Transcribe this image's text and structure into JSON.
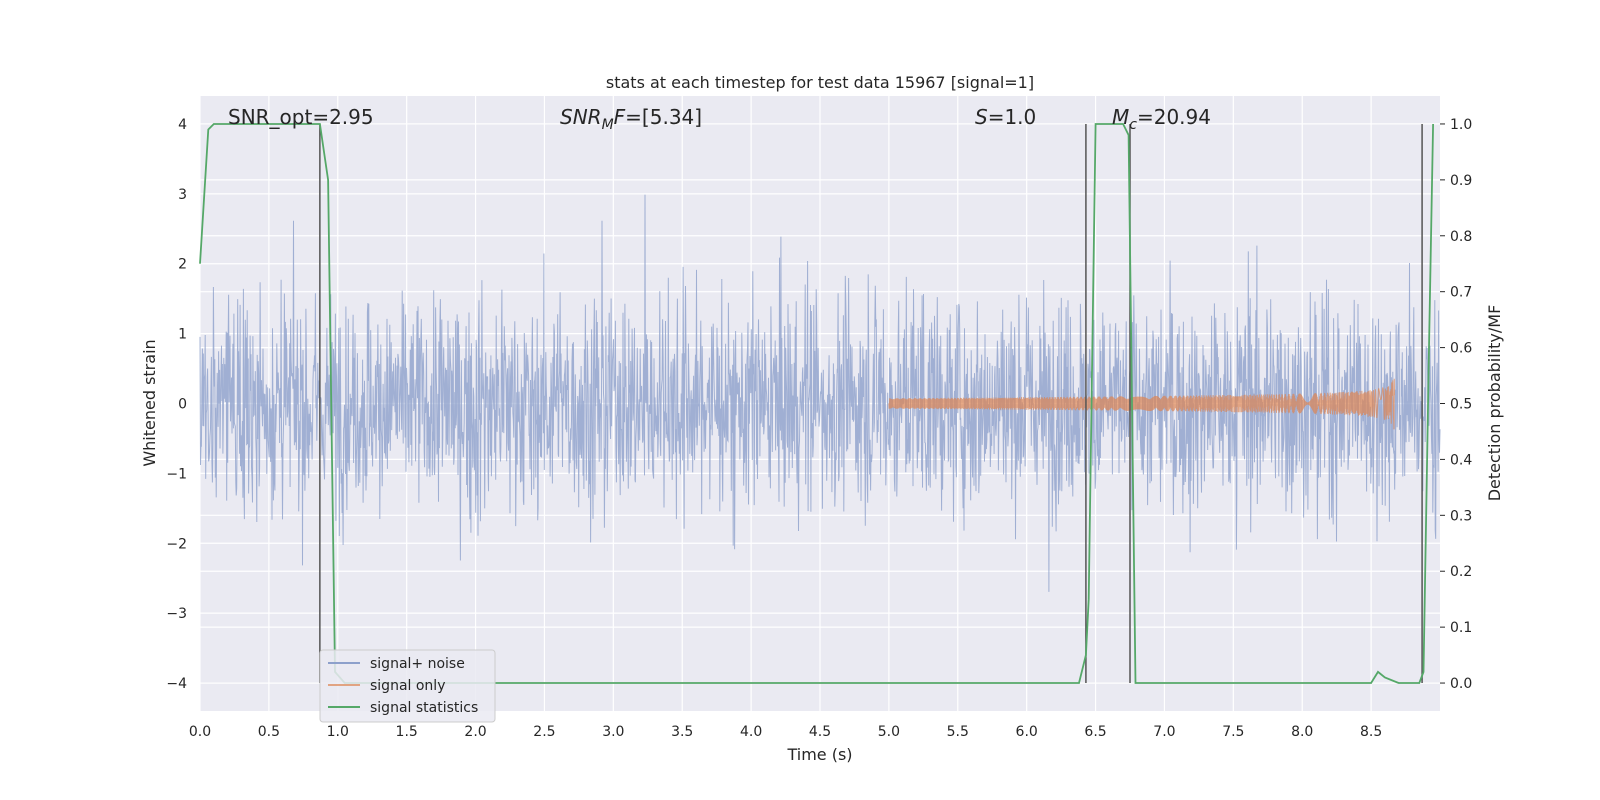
{
  "chart_data": {
    "type": "line",
    "title": "stats at each timestep for test data 15967 [signal=1]",
    "xlabel": "Time (s)",
    "ylabel": "Whitened strain",
    "ylabel_right": "Detection probability/MF",
    "xlim": [
      0.0,
      9.0
    ],
    "ylim": [
      -4.4,
      4.4
    ],
    "ylim_right": [
      -0.05,
      1.05
    ],
    "x_ticks": [
      0.0,
      0.5,
      1.0,
      1.5,
      2.0,
      2.5,
      3.0,
      3.5,
      4.0,
      4.5,
      5.0,
      5.5,
      6.0,
      6.5,
      7.0,
      7.5,
      8.0,
      8.5
    ],
    "x_tick_labels": [
      "0.0",
      "0.5",
      "1.0",
      "1.5",
      "2.0",
      "2.5",
      "3.0",
      "3.5",
      "4.0",
      "4.5",
      "5.0",
      "5.5",
      "6.0",
      "6.5",
      "7.0",
      "7.5",
      "8.0",
      "8.5"
    ],
    "y_ticks": [
      -4,
      -3,
      -2,
      -1,
      0,
      1,
      2,
      3,
      4
    ],
    "y_tick_labels": [
      "−4",
      "−3",
      "−2",
      "−1",
      "0",
      "1",
      "2",
      "3",
      "4"
    ],
    "y_right_ticks": [
      0.0,
      0.1,
      0.2,
      0.3,
      0.4,
      0.5,
      0.6,
      0.7,
      0.8,
      0.9,
      1.0
    ],
    "y_right_tick_labels": [
      "0.0",
      "0.1",
      "0.2",
      "0.3",
      "0.4",
      "0.5",
      "0.6",
      "0.7",
      "0.8",
      "0.9",
      "1.0"
    ],
    "grid": true,
    "legend_position": "lower-left",
    "annotations": [
      {
        "text": "SNR_opt=2.95"
      },
      {
        "text": "SNR_MF=[5.34]"
      },
      {
        "text": "S=1.0"
      },
      {
        "text": "M_c=20.94"
      }
    ],
    "series": [
      {
        "name": "signal+ noise",
        "color": "#8da0cb",
        "description_type": "dense noise strain, roughly within -3.6 to 3.8"
      },
      {
        "name": "signal only",
        "color": "#dd8452",
        "description_type": "chirp from ~5.0 s growing to amplitude ~0.65 at ~8.67 s"
      },
      {
        "name": "signal statistics",
        "color": "#55a868",
        "axis": "right",
        "x": [
          0.0,
          0.06,
          0.1,
          0.2,
          0.5,
          0.85,
          0.87,
          0.93,
          0.98,
          1.05,
          2.0,
          3.0,
          4.0,
          5.0,
          6.0,
          6.38,
          6.43,
          6.45,
          6.5,
          6.7,
          6.74,
          6.79,
          6.85,
          7.0,
          8.0,
          8.5,
          8.55,
          8.6,
          8.7,
          8.85,
          8.88,
          8.92,
          8.95
        ],
        "values": [
          0.75,
          0.99,
          1.0,
          1.0,
          1.0,
          1.0,
          1.0,
          0.9,
          0.02,
          0.0,
          0.0,
          0.0,
          0.0,
          0.0,
          0.0,
          0.0,
          0.05,
          0.15,
          1.0,
          1.0,
          0.98,
          0.0,
          0.0,
          0.0,
          0.0,
          0.0,
          0.02,
          0.01,
          0.0,
          0.0,
          0.02,
          0.6,
          1.0
        ]
      }
    ],
    "vertical_markers": [
      0.87,
      6.43,
      6.75,
      8.87
    ]
  }
}
